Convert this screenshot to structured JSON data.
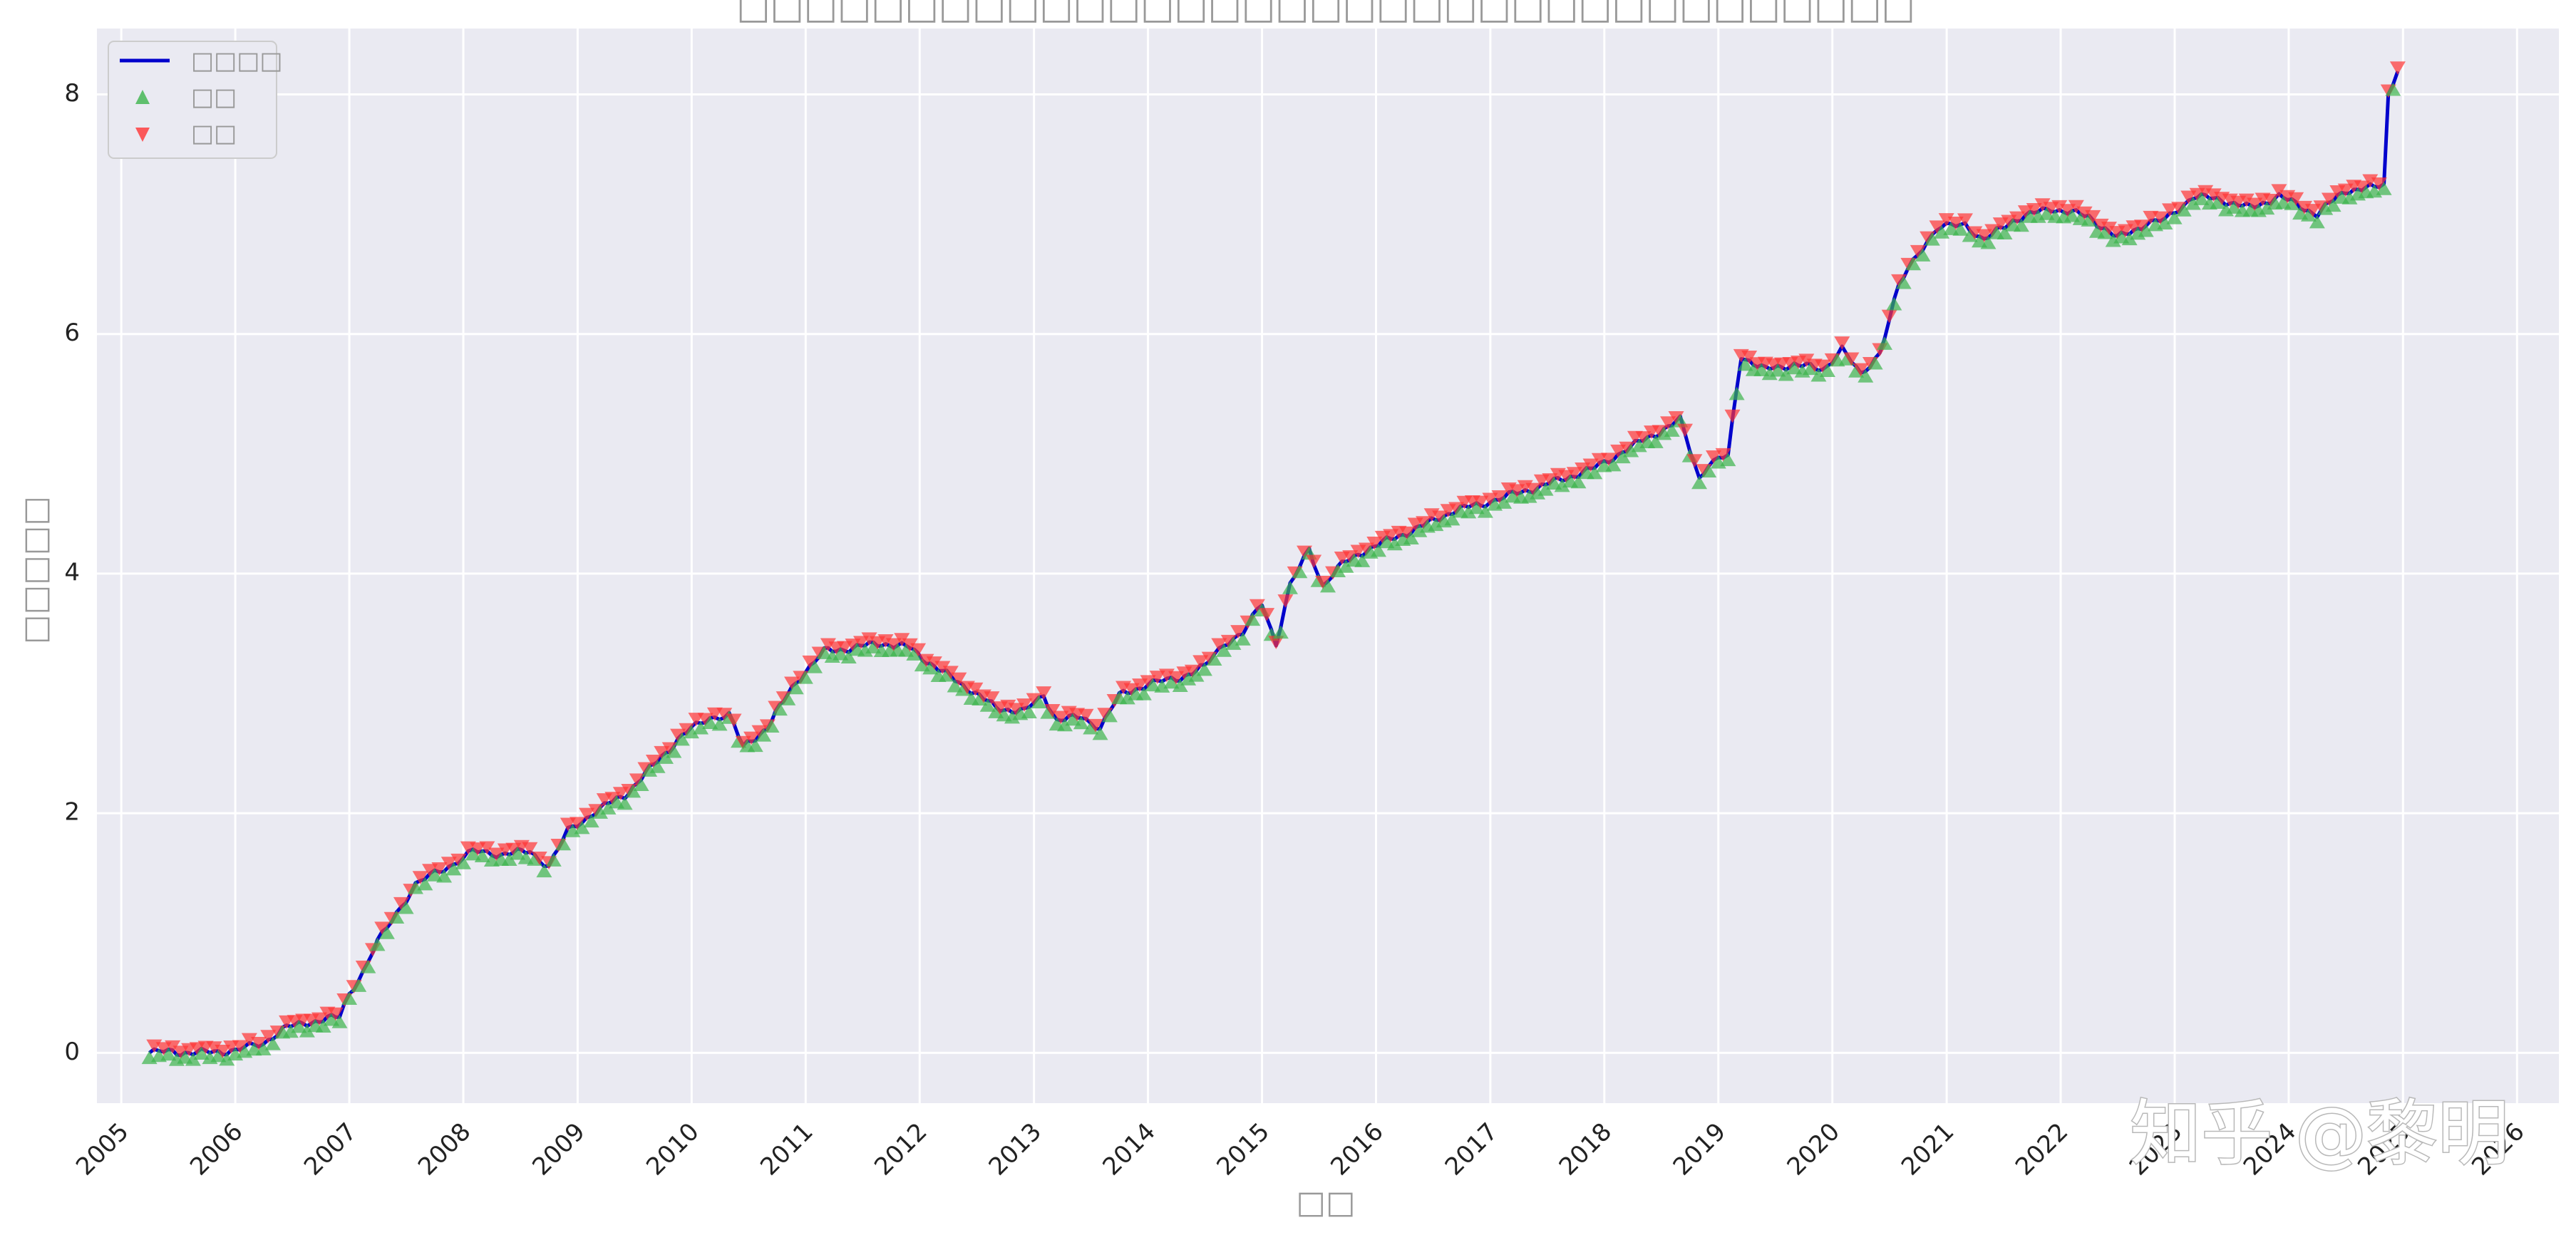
{
  "watermark": "知乎 @黎明",
  "colors": {
    "plot_bg": "#eaeaf2",
    "grid": "#ffffff",
    "line": "#0000cc",
    "buy": "#3cb44b",
    "sell": "#ff3333"
  },
  "chart_data": {
    "type": "line",
    "title": "□□□□□□□□□□□□□□□□□□□□□□□□□□□□□□□□□□□",
    "xlabel": "□□",
    "ylabel": "□□□□□",
    "x_axis": "date",
    "xlim": [
      "2004-10-15",
      "2026-05-15"
    ],
    "ylim": [
      -0.42,
      8.55
    ],
    "x_ticks": [
      "2005",
      "2006",
      "2007",
      "2008",
      "2009",
      "2010",
      "2011",
      "2012",
      "2013",
      "2014",
      "2015",
      "2016",
      "2017",
      "2018",
      "2019",
      "2020",
      "2021",
      "2022",
      "2023",
      "2024",
      "2025",
      "2026"
    ],
    "y_ticks": [
      0,
      2,
      4,
      6,
      8
    ],
    "grid": true,
    "legend_position": "top-left",
    "legend": [
      {
        "label": "□□□□",
        "marker": "line",
        "color": "#0000cc"
      },
      {
        "label": "□□",
        "marker": "triangle-up",
        "color": "#3cb44b"
      },
      {
        "label": "□□",
        "marker": "triangle-down",
        "color": "#ff3333"
      }
    ],
    "series": [
      {
        "points": [
          [
            "2005-04-01",
            0.0
          ],
          [
            "2005-06-01",
            0.01
          ],
          [
            "2005-09-01",
            0.0
          ],
          [
            "2006-01-01",
            0.02
          ],
          [
            "2006-04-01",
            0.08
          ],
          [
            "2006-06-01",
            0.2
          ],
          [
            "2006-09-01",
            0.26
          ],
          [
            "2006-12-01",
            0.3
          ],
          [
            "2007-01-01",
            0.5
          ],
          [
            "2007-02-15",
            0.68
          ],
          [
            "2007-04-01",
            0.92
          ],
          [
            "2007-06-01",
            1.17
          ],
          [
            "2007-08-01",
            1.4
          ],
          [
            "2007-10-01",
            1.5
          ],
          [
            "2007-12-01",
            1.58
          ],
          [
            "2008-02-01",
            1.68
          ],
          [
            "2008-05-01",
            1.66
          ],
          [
            "2008-08-01",
            1.68
          ],
          [
            "2008-10-01",
            1.56
          ],
          [
            "2008-12-01",
            1.85
          ],
          [
            "2009-03-01",
            2.02
          ],
          [
            "2009-06-01",
            2.15
          ],
          [
            "2009-09-01",
            2.4
          ],
          [
            "2009-12-01",
            2.65
          ],
          [
            "2010-03-01",
            2.8
          ],
          [
            "2010-05-01",
            2.82
          ],
          [
            "2010-06-15",
            2.55
          ],
          [
            "2010-09-01",
            2.72
          ],
          [
            "2010-12-01",
            3.1
          ],
          [
            "2011-03-01",
            3.35
          ],
          [
            "2011-06-01",
            3.38
          ],
          [
            "2011-09-01",
            3.42
          ],
          [
            "2011-12-01",
            3.38
          ],
          [
            "2012-03-01",
            3.2
          ],
          [
            "2012-06-01",
            3.05
          ],
          [
            "2012-09-01",
            2.88
          ],
          [
            "2012-12-01",
            2.85
          ],
          [
            "2013-02-01",
            2.98
          ],
          [
            "2013-03-15",
            2.78
          ],
          [
            "2013-06-01",
            2.8
          ],
          [
            "2013-08-01",
            2.72
          ],
          [
            "2013-10-01",
            2.98
          ],
          [
            "2014-01-01",
            3.08
          ],
          [
            "2014-04-01",
            3.12
          ],
          [
            "2014-07-01",
            3.22
          ],
          [
            "2014-09-01",
            3.42
          ],
          [
            "2014-11-01",
            3.5
          ],
          [
            "2015-01-01",
            3.75
          ],
          [
            "2015-02-15",
            3.42
          ],
          [
            "2015-04-01",
            3.9
          ],
          [
            "2015-06-01",
            4.2
          ],
          [
            "2015-07-15",
            3.9
          ],
          [
            "2015-09-01",
            4.05
          ],
          [
            "2015-12-01",
            4.2
          ],
          [
            "2016-03-01",
            4.3
          ],
          [
            "2016-06-01",
            4.4
          ],
          [
            "2016-09-01",
            4.52
          ],
          [
            "2016-12-01",
            4.58
          ],
          [
            "2017-03-01",
            4.65
          ],
          [
            "2017-06-01",
            4.72
          ],
          [
            "2017-09-01",
            4.8
          ],
          [
            "2017-12-01",
            4.88
          ],
          [
            "2018-03-01",
            5.02
          ],
          [
            "2018-06-01",
            5.15
          ],
          [
            "2018-09-01",
            5.28
          ],
          [
            "2018-11-01",
            4.8
          ],
          [
            "2018-12-01",
            4.92
          ],
          [
            "2019-02-01",
            4.98
          ],
          [
            "2019-03-15",
            5.82
          ],
          [
            "2019-06-01",
            5.7
          ],
          [
            "2019-09-01",
            5.75
          ],
          [
            "2019-12-01",
            5.7
          ],
          [
            "2020-02-01",
            5.88
          ],
          [
            "2020-04-01",
            5.65
          ],
          [
            "2020-06-01",
            5.85
          ],
          [
            "2020-08-01",
            6.4
          ],
          [
            "2020-10-01",
            6.68
          ],
          [
            "2020-12-01",
            6.88
          ],
          [
            "2021-03-01",
            6.92
          ],
          [
            "2021-05-01",
            6.78
          ],
          [
            "2021-08-01",
            6.95
          ],
          [
            "2021-12-01",
            7.05
          ],
          [
            "2022-04-01",
            6.98
          ],
          [
            "2022-07-01",
            6.8
          ],
          [
            "2022-10-01",
            6.92
          ],
          [
            "2022-12-01",
            6.95
          ],
          [
            "2023-03-01",
            7.15
          ],
          [
            "2023-06-01",
            7.12
          ],
          [
            "2023-09-01",
            7.05
          ],
          [
            "2023-12-01",
            7.15
          ],
          [
            "2024-04-01",
            7.0
          ],
          [
            "2024-07-01",
            7.2
          ],
          [
            "2024-10-01",
            7.22
          ],
          [
            "2024-11-01",
            7.25
          ],
          [
            "2024-11-15",
            8.0
          ],
          [
            "2024-12-15",
            8.22
          ]
        ]
      }
    ]
  }
}
